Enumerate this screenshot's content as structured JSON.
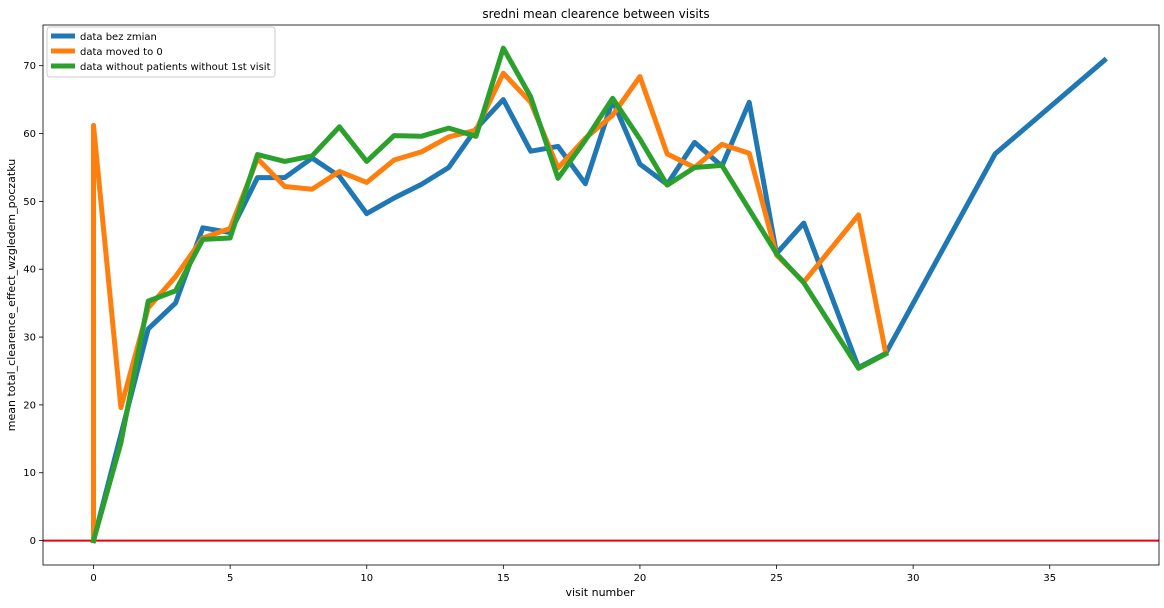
{
  "chart_data": {
    "type": "line",
    "title": "sredni mean clearence between visits",
    "xlabel": "visit number",
    "ylabel": "mean total_clearence_effect_wzgledem_poczatku",
    "xlim": [
      -1.85,
      39
    ],
    "ylim": [
      -3.6,
      76
    ],
    "xticks": [
      0,
      5,
      10,
      15,
      20,
      25,
      30,
      35
    ],
    "yticks": [
      0,
      10,
      20,
      30,
      40,
      50,
      60,
      70
    ],
    "grid": false,
    "legend_position": "top-left",
    "reference_line": {
      "y": 0,
      "color": "#e8000b"
    },
    "series": [
      {
        "name": "data bez zmian",
        "color": "#1f77b4",
        "x": [
          0,
          2,
          3,
          4,
          5,
          6,
          7,
          8,
          9,
          10,
          11,
          12,
          13,
          14,
          15,
          16,
          17,
          18,
          19,
          20,
          21,
          22,
          23,
          24,
          25,
          26,
          28,
          29,
          33,
          37
        ],
        "y": [
          0,
          31.2,
          35.0,
          46.1,
          45.4,
          53.5,
          53.5,
          56.4,
          53.7,
          48.2,
          50.5,
          52.5,
          55.0,
          60.7,
          65.0,
          57.4,
          58.1,
          52.6,
          64.9,
          55.5,
          52.5,
          58.7,
          55.2,
          64.6,
          42.3,
          46.8,
          25.5,
          27.6,
          57.0,
          70.8
        ]
      },
      {
        "name": "data moved to 0",
        "color": "#ff7f0e",
        "x": [
          0,
          0,
          1,
          2,
          3,
          4,
          5,
          6,
          7,
          8,
          9,
          10,
          11,
          12,
          13,
          14,
          15,
          16,
          17,
          18,
          19,
          20,
          21,
          22,
          23,
          24,
          25,
          26,
          28,
          29
        ],
        "y": [
          0,
          61.2,
          19.6,
          34.3,
          38.9,
          44.6,
          46.0,
          56.3,
          52.2,
          51.8,
          54.4,
          52.8,
          56.1,
          57.3,
          59.5,
          60.5,
          68.9,
          64.6,
          54.9,
          59.3,
          62.7,
          68.4,
          57.0,
          55.0,
          58.4,
          57.1,
          42.1,
          38.1,
          48.0,
          27.6
        ]
      },
      {
        "name": "data without patients without 1st visit",
        "color": "#2ca02c",
        "x": [
          0,
          1,
          2,
          3,
          4,
          5,
          6,
          7,
          8,
          9,
          10,
          11,
          12,
          13,
          14,
          15,
          16,
          17,
          18,
          19,
          20,
          21,
          22,
          23,
          25,
          26,
          28,
          29
        ],
        "y": [
          0,
          14.4,
          35.3,
          36.8,
          44.4,
          44.6,
          56.9,
          55.9,
          56.7,
          61.0,
          55.9,
          59.7,
          59.6,
          60.8,
          59.6,
          72.6,
          65.4,
          53.4,
          59.0,
          65.2,
          59.2,
          52.4,
          55.0,
          55.3,
          42.3,
          38.0,
          25.4,
          27.5
        ]
      }
    ]
  }
}
